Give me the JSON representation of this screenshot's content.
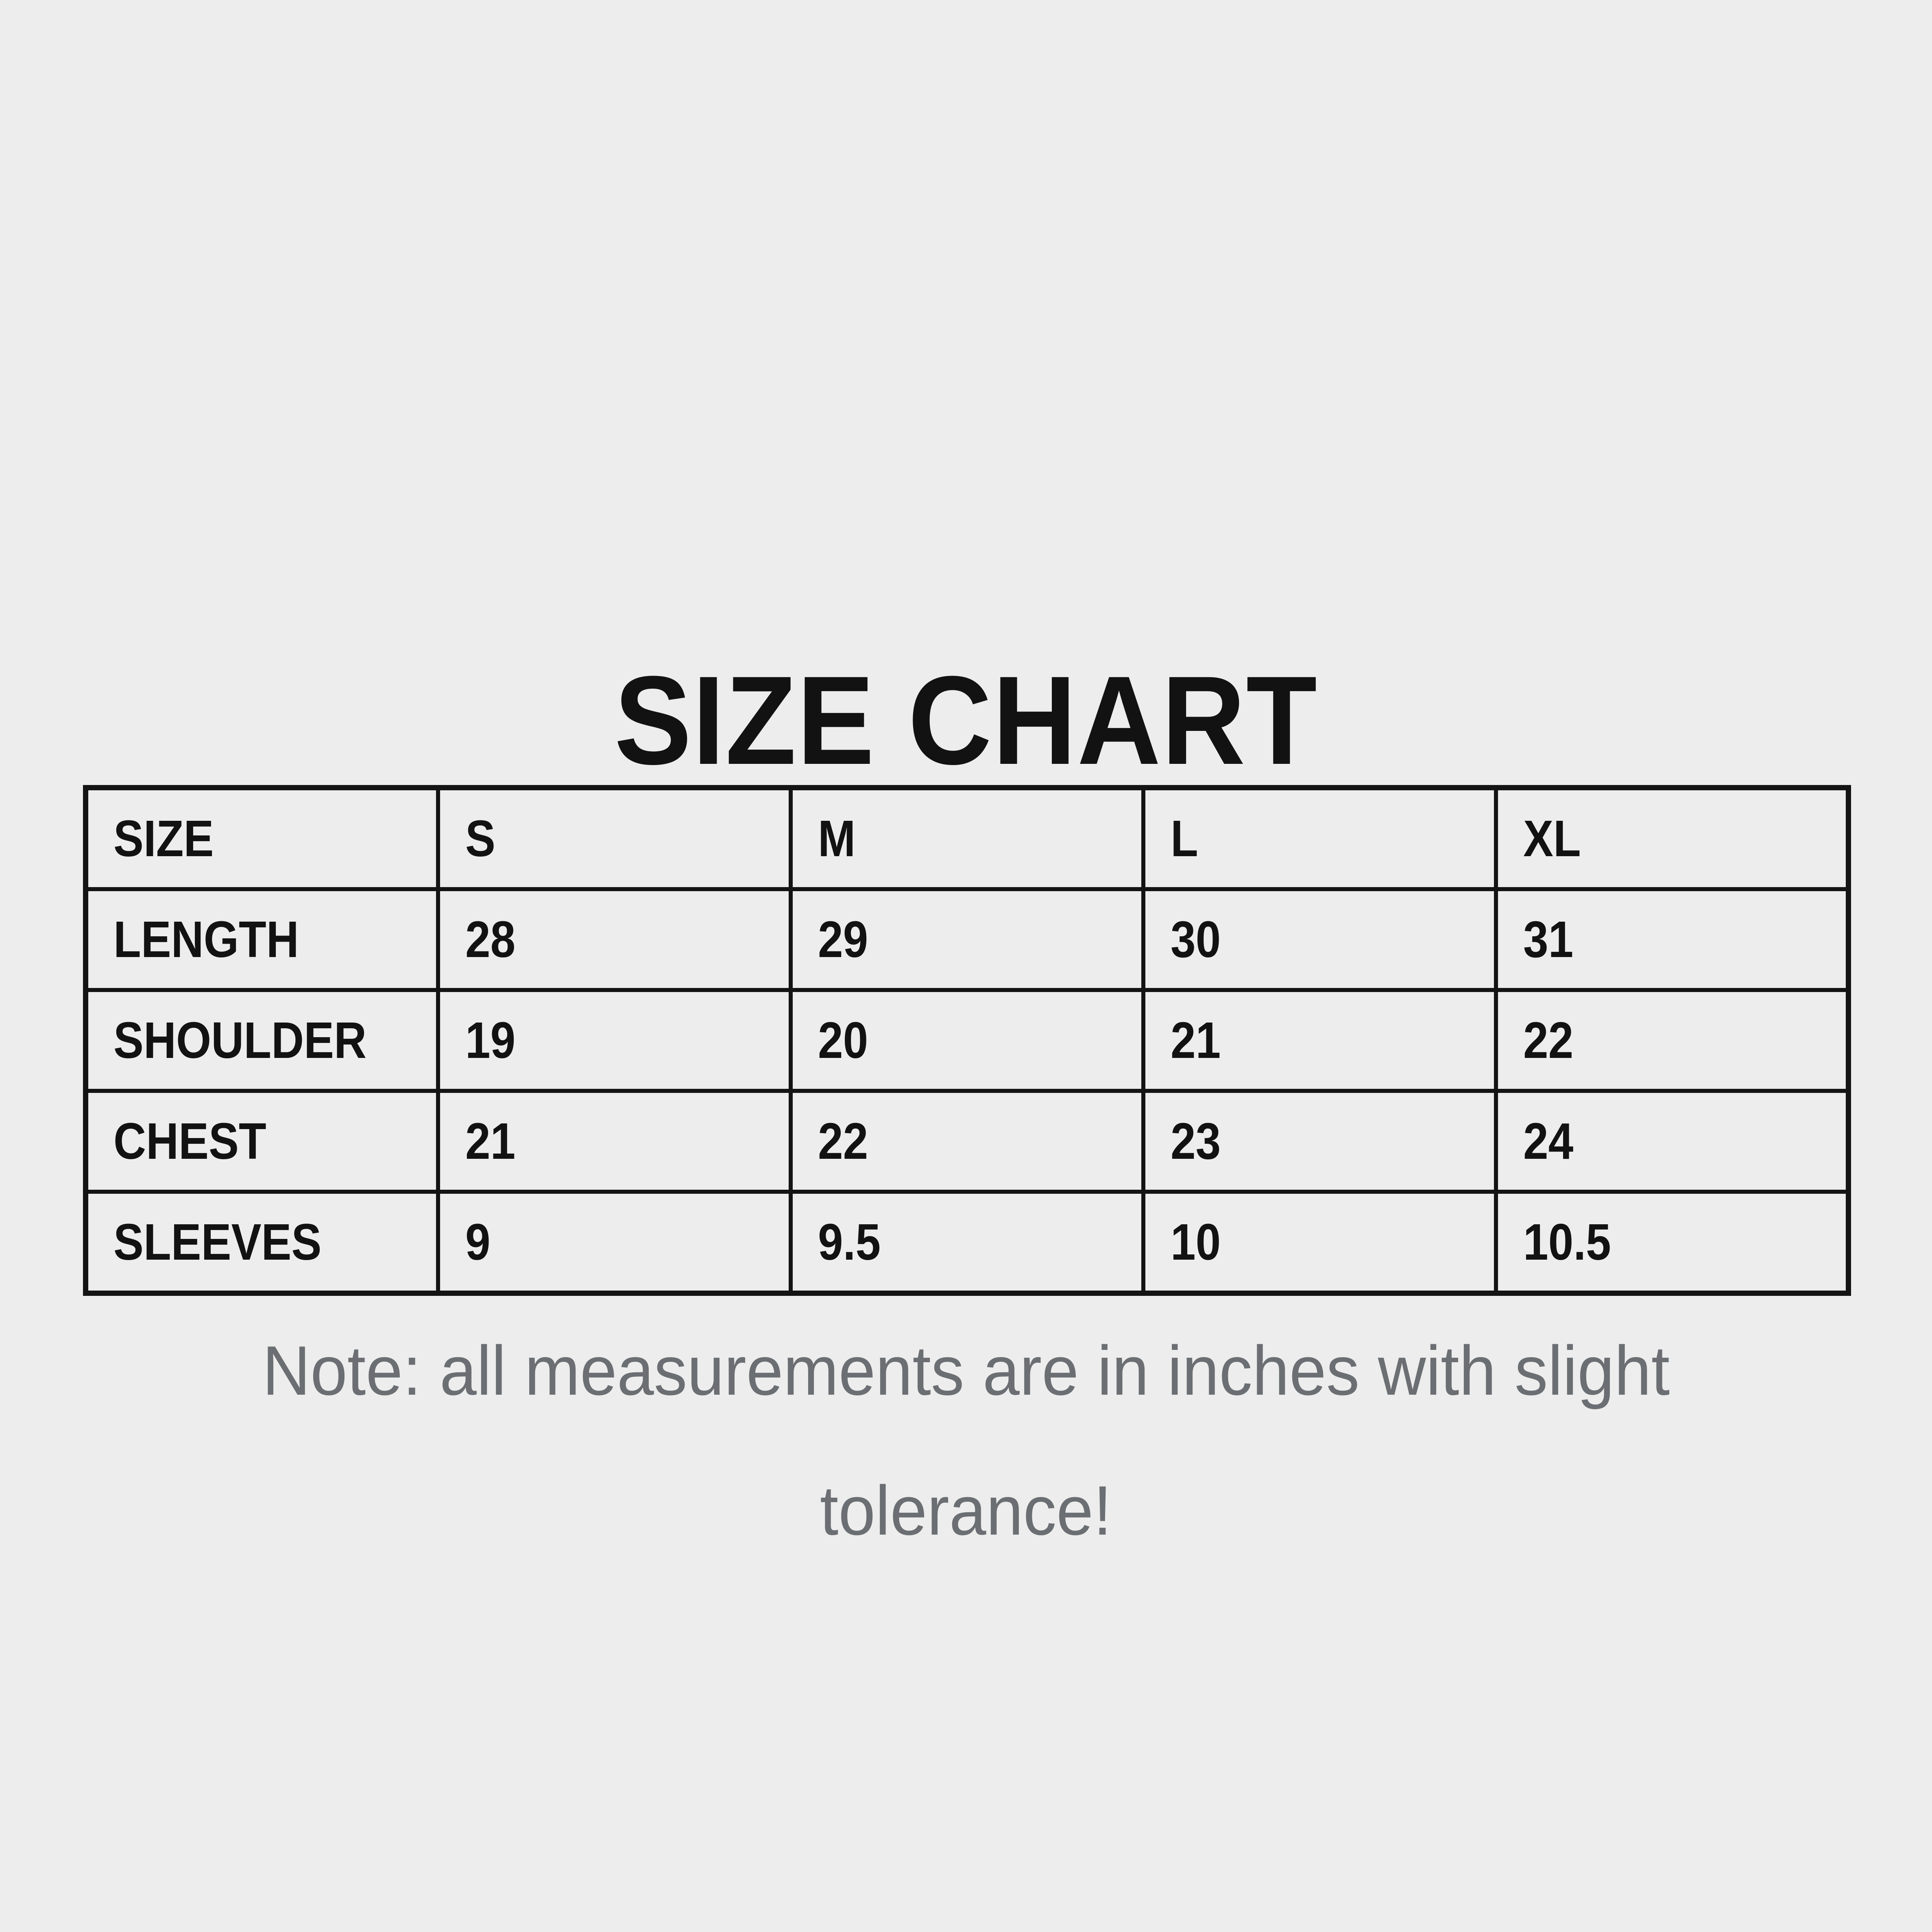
{
  "colors": {
    "background": "#ECEDEC",
    "text": "#121212",
    "border": "#141414",
    "note_text": "#6B6E72"
  },
  "chart_data": {
    "type": "table",
    "title": "SIZE CHART",
    "columns": [
      "SIZE",
      "S",
      "M",
      "L",
      "XL"
    ],
    "rows": [
      [
        "LENGTH",
        "28",
        "29",
        "30",
        "31"
      ],
      [
        "SHOULDER",
        "19",
        "20",
        "21",
        "22"
      ],
      [
        "CHEST",
        "21",
        "22",
        "23",
        "24"
      ],
      [
        "SLEEVES",
        "9",
        "9.5",
        "10",
        "10.5"
      ]
    ],
    "note": "Note: all measurements are in inches with slight tolerance!"
  },
  "note_lines": [
    "Note: all measurements are in inches with slight",
    "tolerance!"
  ]
}
